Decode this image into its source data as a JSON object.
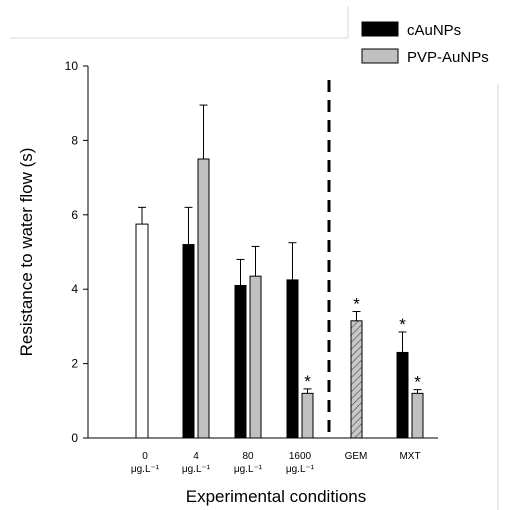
{
  "chart_data": {
    "type": "bar",
    "ylabel": "Resistance to water flow (s)",
    "xlabel": "Experimental conditions",
    "ylim": [
      0,
      10
    ],
    "yticks": [
      0,
      2,
      4,
      6,
      8,
      10
    ],
    "categories": [
      {
        "label": "0",
        "sublabel": "μg.L⁻¹"
      },
      {
        "label": "4",
        "sublabel": "μg.L⁻¹"
      },
      {
        "label": "80",
        "sublabel": "μg.L⁻¹"
      },
      {
        "label": "1600",
        "sublabel": "μg.L⁻¹"
      },
      {
        "label": "GEM",
        "sublabel": ""
      },
      {
        "label": "MXT",
        "sublabel": ""
      }
    ],
    "series": [
      {
        "name": "cAuNPs",
        "color": "#000000"
      },
      {
        "name": "PVP-AuNPs",
        "color": "#c0c0c0"
      }
    ],
    "bars": [
      {
        "category": 0,
        "style": "control",
        "value": 5.75,
        "error": 0.45,
        "star": false
      },
      {
        "category": 1,
        "series": 0,
        "value": 5.2,
        "error": 1.0,
        "star": false
      },
      {
        "category": 1,
        "series": 1,
        "value": 7.5,
        "error": 1.45,
        "star": false
      },
      {
        "category": 2,
        "series": 0,
        "value": 4.1,
        "error": 0.7,
        "star": false
      },
      {
        "category": 2,
        "series": 1,
        "value": 4.35,
        "error": 0.8,
        "star": false
      },
      {
        "category": 3,
        "series": 0,
        "value": 4.25,
        "error": 1.0,
        "star": false
      },
      {
        "category": 3,
        "series": 1,
        "value": 1.2,
        "error": 0.12,
        "star": true
      },
      {
        "category": 4,
        "style": "hatched",
        "value": 3.15,
        "error": 0.25,
        "star": true
      },
      {
        "category": 5,
        "series": 0,
        "value": 2.3,
        "error": 0.55,
        "star": true
      },
      {
        "category": 5,
        "series": 1,
        "value": 1.2,
        "error": 0.1,
        "star": true
      }
    ],
    "star_symbol": "*",
    "legend_position": "top-right",
    "grid": false
  }
}
